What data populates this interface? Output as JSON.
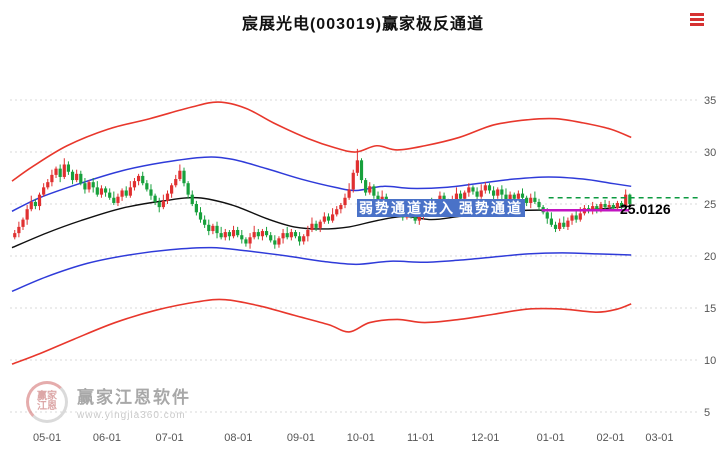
{
  "header": {
    "title": "宸展光电(003019)赢家极反通道"
  },
  "annotations": {
    "channel_label_part1": "弱势通道进入",
    "channel_label_part2": "强势通道",
    "price_label": "25.0126"
  },
  "watermark": {
    "brand": "赢家江恩软件",
    "url": "www.yingjia360.com",
    "logo_line1": "赢家",
    "logo_line2": "江恩"
  },
  "chart_data": {
    "type": "candlestick",
    "title": "宸展光电(003019)赢家极反通道",
    "x_tick_labels": [
      "05-01",
      "06-01",
      "07-01",
      "08-01",
      "09-01",
      "10-01",
      "11-01",
      "12-01",
      "01-01",
      "02-01",
      "03-01"
    ],
    "x_tick_pos": [
      0.051,
      0.138,
      0.229,
      0.329,
      0.42,
      0.507,
      0.594,
      0.688,
      0.783,
      0.87,
      0.941
    ],
    "y_ticks": [
      35,
      30,
      25,
      20,
      15,
      10,
      5
    ],
    "ylim": [
      4.5,
      39
    ],
    "grid": true,
    "legend": "none",
    "bands": {
      "upper_red": [
        [
          0,
          27.2
        ],
        [
          0.03,
          28.6
        ],
        [
          0.08,
          30.6
        ],
        [
          0.14,
          32.2
        ],
        [
          0.2,
          33.2
        ],
        [
          0.26,
          34.3
        ],
        [
          0.3,
          34.8
        ],
        [
          0.34,
          34.2
        ],
        [
          0.38,
          32.8
        ],
        [
          0.43,
          31.3
        ],
        [
          0.47,
          30.4
        ],
        [
          0.5,
          30.0
        ],
        [
          0.53,
          30.6
        ],
        [
          0.56,
          30.2
        ],
        [
          0.6,
          30.6
        ],
        [
          0.65,
          31.4
        ],
        [
          0.7,
          32.6
        ],
        [
          0.75,
          33.1
        ],
        [
          0.79,
          33.2
        ],
        [
          0.83,
          32.8
        ],
        [
          0.87,
          32.2
        ],
        [
          0.9,
          31.4
        ]
      ],
      "upper_blue": [
        [
          0,
          24.3
        ],
        [
          0.04,
          25.6
        ],
        [
          0.1,
          27.0
        ],
        [
          0.16,
          28.2
        ],
        [
          0.22,
          29.0
        ],
        [
          0.28,
          29.5
        ],
        [
          0.32,
          29.3
        ],
        [
          0.37,
          28.4
        ],
        [
          0.42,
          27.4
        ],
        [
          0.47,
          26.6
        ],
        [
          0.5,
          26.3
        ],
        [
          0.54,
          26.7
        ],
        [
          0.58,
          26.5
        ],
        [
          0.63,
          26.6
        ],
        [
          0.68,
          27.0
        ],
        [
          0.73,
          27.4
        ],
        [
          0.78,
          27.6
        ],
        [
          0.83,
          27.4
        ],
        [
          0.87,
          27.0
        ],
        [
          0.9,
          26.7
        ]
      ],
      "mid_black": [
        [
          0,
          20.8
        ],
        [
          0.05,
          22.2
        ],
        [
          0.1,
          23.4
        ],
        [
          0.16,
          24.6
        ],
        [
          0.22,
          25.3
        ],
        [
          0.27,
          25.6
        ],
        [
          0.32,
          24.9
        ],
        [
          0.37,
          23.6
        ],
        [
          0.41,
          22.8
        ],
        [
          0.45,
          22.6
        ],
        [
          0.49,
          22.8
        ],
        [
          0.53,
          23.4
        ],
        [
          0.57,
          23.8
        ],
        [
          0.61,
          23.5
        ],
        [
          0.65,
          23.8
        ],
        [
          0.7,
          24.2
        ],
        [
          0.75,
          24.4
        ],
        [
          0.8,
          24.4
        ],
        [
          0.85,
          24.5
        ],
        [
          0.9,
          24.8
        ]
      ],
      "lower_blue": [
        [
          0,
          16.6
        ],
        [
          0.05,
          18.0
        ],
        [
          0.11,
          19.3
        ],
        [
          0.17,
          20.1
        ],
        [
          0.23,
          20.6
        ],
        [
          0.29,
          20.8
        ],
        [
          0.34,
          20.5
        ],
        [
          0.4,
          20.0
        ],
        [
          0.45,
          19.5
        ],
        [
          0.5,
          19.2
        ],
        [
          0.55,
          19.5
        ],
        [
          0.6,
          19.4
        ],
        [
          0.65,
          19.6
        ],
        [
          0.7,
          19.9
        ],
        [
          0.75,
          20.2
        ],
        [
          0.8,
          20.3
        ],
        [
          0.85,
          20.2
        ],
        [
          0.9,
          20.1
        ]
      ],
      "lower_red": [
        [
          0,
          9.6
        ],
        [
          0.04,
          10.6
        ],
        [
          0.09,
          12.0
        ],
        [
          0.15,
          13.6
        ],
        [
          0.21,
          14.8
        ],
        [
          0.27,
          15.6
        ],
        [
          0.31,
          15.8
        ],
        [
          0.36,
          15.2
        ],
        [
          0.41,
          14.3
        ],
        [
          0.46,
          13.4
        ],
        [
          0.49,
          12.7
        ],
        [
          0.52,
          13.6
        ],
        [
          0.56,
          13.9
        ],
        [
          0.6,
          13.6
        ],
        [
          0.65,
          13.9
        ],
        [
          0.7,
          14.4
        ],
        [
          0.75,
          14.9
        ],
        [
          0.8,
          14.9
        ],
        [
          0.85,
          14.6
        ],
        [
          0.88,
          14.9
        ],
        [
          0.9,
          15.4
        ]
      ]
    },
    "candles": [
      [
        21.8,
        22.5,
        21.6,
        22.2
      ],
      [
        22.2,
        23.3,
        21.8,
        22.8
      ],
      [
        22.8,
        23.7,
        22.5,
        23.5
      ],
      [
        23.5,
        24.9,
        23.0,
        24.5
      ],
      [
        24.5,
        25.8,
        24.3,
        25.2
      ],
      [
        25.2,
        25.5,
        24.5,
        24.8
      ],
      [
        24.8,
        26.1,
        24.4,
        25.9
      ],
      [
        25.9,
        27.0,
        25.7,
        26.6
      ],
      [
        26.6,
        27.4,
        26.4,
        27.1
      ],
      [
        27.1,
        28.3,
        26.7,
        27.8
      ],
      [
        27.8,
        28.6,
        27.5,
        28.4
      ],
      [
        28.4,
        28.8,
        27.1,
        27.6
      ],
      [
        27.6,
        29.4,
        27.4,
        28.8
      ],
      [
        28.8,
        29.1,
        27.8,
        28.1
      ],
      [
        28.1,
        28.3,
        26.9,
        27.3
      ],
      [
        27.3,
        28.3,
        27.1,
        27.9
      ],
      [
        27.9,
        28.2,
        26.8,
        27.0
      ],
      [
        27.0,
        27.5,
        26.0,
        26.4
      ],
      [
        26.4,
        27.3,
        26.1,
        27.1
      ],
      [
        27.1,
        27.5,
        26.1,
        26.6
      ],
      [
        26.6,
        27.2,
        25.7,
        25.9
      ],
      [
        25.9,
        26.8,
        25.6,
        26.5
      ],
      [
        26.5,
        26.7,
        25.7,
        26.1
      ],
      [
        26.1,
        26.5,
        25.4,
        25.6
      ],
      [
        25.6,
        26.2,
        24.9,
        25.1
      ],
      [
        25.1,
        26.0,
        24.8,
        25.7
      ],
      [
        25.7,
        26.5,
        25.3,
        26.3
      ],
      [
        26.3,
        26.7,
        25.6,
        25.8
      ],
      [
        25.8,
        27.2,
        25.6,
        26.6
      ],
      [
        26.6,
        27.5,
        26.3,
        27.2
      ],
      [
        27.2,
        27.9,
        26.8,
        27.7
      ],
      [
        27.7,
        28.1,
        26.8,
        27.0
      ],
      [
        27.0,
        27.3,
        26.2,
        26.4
      ],
      [
        26.4,
        26.9,
        25.4,
        25.8
      ],
      [
        25.8,
        26.0,
        24.9,
        25.2
      ],
      [
        25.2,
        25.6,
        24.2,
        24.7
      ],
      [
        24.7,
        25.9,
        24.5,
        25.3
      ],
      [
        25.3,
        26.3,
        25.0,
        26.0
      ],
      [
        26.0,
        27.0,
        25.6,
        26.8
      ],
      [
        26.8,
        27.8,
        26.6,
        27.4
      ],
      [
        27.4,
        28.8,
        27.2,
        28.2
      ],
      [
        28.2,
        28.5,
        26.7,
        27.0
      ],
      [
        27.0,
        27.2,
        25.5,
        25.9
      ],
      [
        25.9,
        26.3,
        24.8,
        25.0
      ],
      [
        25.0,
        25.3,
        23.9,
        24.2
      ],
      [
        24.2,
        24.7,
        23.2,
        23.5
      ],
      [
        23.5,
        23.9,
        22.7,
        23.0
      ],
      [
        23.0,
        23.5,
        22.0,
        22.4
      ],
      [
        22.4,
        23.1,
        22.1,
        22.9
      ],
      [
        22.9,
        23.3,
        21.7,
        22.2
      ],
      [
        22.2,
        22.8,
        21.6,
        21.8
      ],
      [
        21.8,
        22.6,
        21.5,
        22.3
      ],
      [
        22.3,
        22.5,
        21.5,
        21.9
      ],
      [
        21.9,
        22.9,
        21.7,
        22.5
      ],
      [
        22.5,
        22.8,
        21.8,
        22.0
      ],
      [
        22.0,
        22.5,
        21.2,
        21.6
      ],
      [
        21.6,
        21.8,
        20.9,
        21.2
      ],
      [
        21.2,
        22.2,
        20.7,
        21.8
      ],
      [
        21.8,
        22.9,
        21.6,
        22.3
      ],
      [
        22.3,
        22.6,
        21.6,
        21.9
      ],
      [
        21.9,
        22.6,
        21.5,
        22.4
      ],
      [
        22.4,
        22.8,
        21.8,
        22.0
      ],
      [
        22.0,
        22.3,
        21.3,
        21.5
      ],
      [
        21.5,
        22.0,
        20.7,
        21.1
      ],
      [
        21.1,
        21.9,
        20.8,
        21.7
      ],
      [
        21.7,
        22.6,
        21.2,
        22.2
      ],
      [
        22.2,
        22.8,
        21.6,
        21.8
      ],
      [
        21.8,
        22.6,
        21.5,
        22.3
      ],
      [
        22.3,
        22.5,
        21.7,
        21.9
      ],
      [
        21.9,
        22.3,
        21.0,
        21.4
      ],
      [
        21.4,
        22.1,
        21.1,
        21.9
      ],
      [
        21.9,
        22.9,
        21.4,
        22.5
      ],
      [
        22.5,
        23.7,
        22.3,
        23.1
      ],
      [
        23.1,
        23.4,
        22.4,
        22.7
      ],
      [
        22.7,
        23.5,
        22.3,
        23.3
      ],
      [
        23.3,
        24.2,
        23.1,
        23.8
      ],
      [
        23.8,
        24.1,
        23.1,
        23.4
      ],
      [
        23.4,
        24.6,
        23.2,
        24.0
      ],
      [
        24.0,
        24.8,
        23.8,
        24.5
      ],
      [
        24.5,
        25.1,
        24.1,
        24.9
      ],
      [
        24.9,
        26.0,
        24.6,
        25.6
      ],
      [
        25.6,
        27.0,
        25.4,
        26.4
      ],
      [
        26.4,
        28.3,
        26.1,
        28.0
      ],
      [
        28.0,
        30.3,
        27.7,
        29.2
      ],
      [
        29.2,
        29.4,
        27.0,
        27.3
      ],
      [
        27.3,
        27.5,
        25.8,
        26.1
      ],
      [
        26.1,
        27.1,
        25.9,
        26.7
      ],
      [
        26.7,
        26.9,
        25.5,
        25.8
      ],
      [
        25.8,
        26.2,
        25.0,
        25.2
      ],
      [
        25.2,
        26.3,
        25.0,
        25.7
      ],
      [
        25.7,
        26.0,
        24.6,
        24.9
      ],
      [
        24.9,
        25.1,
        24.0,
        24.4
      ],
      [
        24.4,
        25.2,
        24.2,
        24.8
      ],
      [
        24.8,
        25.1,
        23.9,
        24.2
      ],
      [
        24.2,
        24.4,
        23.4,
        23.7
      ],
      [
        23.7,
        24.7,
        23.5,
        24.3
      ],
      [
        24.3,
        24.9,
        23.6,
        23.8
      ],
      [
        23.8,
        24.1,
        23.1,
        23.4
      ],
      [
        23.4,
        24.1,
        23.0,
        23.9
      ],
      [
        23.9,
        24.9,
        23.5,
        24.5
      ],
      [
        24.5,
        25.4,
        24.3,
        25.1
      ],
      [
        25.1,
        25.6,
        24.2,
        24.6
      ],
      [
        24.6,
        25.4,
        24.3,
        25.2
      ],
      [
        25.2,
        26.2,
        25.0,
        25.8
      ],
      [
        25.8,
        26.1,
        24.9,
        25.3
      ],
      [
        25.3,
        25.5,
        24.4,
        24.8
      ],
      [
        24.8,
        25.8,
        24.6,
        25.4
      ],
      [
        25.4,
        26.6,
        25.2,
        26.0
      ],
      [
        26.0,
        26.3,
        25.2,
        25.5
      ],
      [
        25.5,
        26.3,
        25.1,
        26.1
      ],
      [
        26.1,
        27.0,
        25.7,
        26.6
      ],
      [
        26.6,
        26.8,
        25.9,
        26.2
      ],
      [
        26.2,
        26.6,
        25.3,
        25.7
      ],
      [
        25.7,
        26.9,
        25.5,
        26.3
      ],
      [
        26.3,
        27.1,
        26.0,
        26.8
      ],
      [
        26.8,
        27.0,
        26.0,
        26.3
      ],
      [
        26.3,
        26.7,
        25.4,
        25.8
      ],
      [
        25.8,
        26.6,
        25.5,
        26.4
      ],
      [
        26.4,
        26.8,
        25.4,
        25.9
      ],
      [
        25.9,
        26.5,
        25.2,
        25.4
      ],
      [
        25.4,
        26.2,
        25.1,
        25.9
      ],
      [
        25.9,
        26.1,
        25.0,
        25.5
      ],
      [
        25.5,
        26.3,
        25.3,
        26.0
      ],
      [
        26.0,
        26.5,
        25.2,
        25.6
      ],
      [
        25.6,
        25.8,
        24.8,
        25.1
      ],
      [
        25.1,
        26.0,
        24.6,
        25.6
      ],
      [
        25.6,
        26.2,
        25.0,
        25.2
      ],
      [
        25.2,
        25.5,
        24.4,
        24.7
      ],
      [
        24.7,
        24.9,
        24.0,
        24.2
      ],
      [
        24.2,
        24.6,
        23.1,
        23.6
      ],
      [
        23.6,
        24.2,
        22.8,
        23.0
      ],
      [
        23.0,
        23.3,
        22.3,
        22.6
      ],
      [
        22.6,
        23.6,
        22.4,
        23.2
      ],
      [
        23.2,
        23.8,
        22.6,
        22.8
      ],
      [
        22.8,
        23.7,
        22.5,
        23.4
      ],
      [
        23.4,
        24.1,
        23.0,
        23.9
      ],
      [
        23.9,
        24.3,
        23.2,
        23.5
      ],
      [
        23.5,
        24.7,
        23.3,
        24.1
      ],
      [
        24.1,
        24.9,
        23.9,
        24.6
      ],
      [
        24.6,
        24.9,
        24.1,
        24.3
      ],
      [
        24.3,
        25.2,
        24.0,
        24.8
      ],
      [
        24.8,
        25.0,
        24.1,
        24.5
      ],
      [
        24.5,
        25.2,
        24.2,
        25.0
      ],
      [
        25.0,
        25.4,
        24.5,
        24.7
      ],
      [
        24.7,
        25.3,
        24.4,
        24.9
      ],
      [
        24.9,
        25.1,
        24.3,
        24.6
      ],
      [
        24.6,
        25.3,
        24.4,
        25.1
      ],
      [
        25.1,
        25.3,
        24.5,
        24.8
      ],
      [
        24.8,
        26.4,
        24.6,
        25.9
      ],
      [
        25.9,
        26.0,
        24.8,
        25.0
      ]
    ],
    "overlays": {
      "dashed_green": {
        "value": 25.6,
        "from": 0.78,
        "to": 1.0
      },
      "magenta_line": {
        "value": 24.4,
        "from": 0.77,
        "to": 0.897
      }
    },
    "colors": {
      "up": "#e03030",
      "down": "#17a03c",
      "band_outer": "#e8372c",
      "band_inner": "#2f3bd9",
      "band_mid": "#101010",
      "dashed": "#0c9a40",
      "magenta": "#c214c2",
      "grid": "#d9d9d9",
      "axis_text": "#555555"
    }
  }
}
